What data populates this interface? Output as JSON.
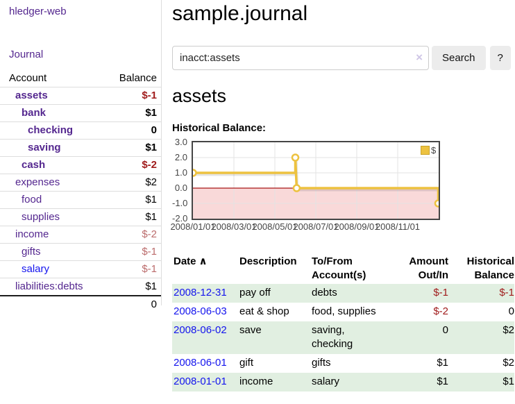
{
  "app": {
    "brand": "hledger-web"
  },
  "nav": {
    "journal": "Journal"
  },
  "sidebar": {
    "header": {
      "account": "Account",
      "balance": "Balance"
    },
    "accounts": [
      {
        "name": "assets",
        "indent": 1,
        "bold": true,
        "link_color": "purple",
        "balance": "$-1",
        "balance_class": "neg"
      },
      {
        "name": "bank",
        "indent": 2,
        "bold": true,
        "link_color": "purple",
        "balance": "$1",
        "balance_class": "plain"
      },
      {
        "name": "checking",
        "indent": 3,
        "bold": true,
        "link_color": "purple",
        "balance": "0",
        "balance_class": "plain"
      },
      {
        "name": "saving",
        "indent": 3,
        "bold": true,
        "link_color": "purple",
        "balance": "$1",
        "balance_class": "plain"
      },
      {
        "name": "cash",
        "indent": 2,
        "bold": true,
        "link_color": "purple",
        "balance": "$-2",
        "balance_class": "neg"
      },
      {
        "name": "expenses",
        "indent": 1,
        "bold": false,
        "link_color": "purple",
        "balance": "$2",
        "balance_class": "plain"
      },
      {
        "name": "food",
        "indent": 2,
        "bold": false,
        "link_color": "purple",
        "balance": "$1",
        "balance_class": "plain"
      },
      {
        "name": "supplies",
        "indent": 2,
        "bold": false,
        "link_color": "purple",
        "balance": "$1",
        "balance_class": "plain"
      },
      {
        "name": "income",
        "indent": 1,
        "bold": false,
        "link_color": "purple",
        "balance": "$-2",
        "balance_class": "negsoft"
      },
      {
        "name": "gifts",
        "indent": 2,
        "bold": false,
        "link_color": "purple",
        "balance": "$-1",
        "balance_class": "negsoft"
      },
      {
        "name": "salary",
        "indent": 2,
        "bold": false,
        "link_color": "blue",
        "balance": "$-1",
        "balance_class": "negsoft"
      },
      {
        "name": "liabilities:debts",
        "indent": 1,
        "bold": false,
        "link_color": "purple",
        "balance": "$1",
        "balance_class": "plain"
      }
    ],
    "total": "0"
  },
  "main": {
    "title": "sample.journal",
    "search": {
      "query": "inacct:assets",
      "clear_icon": "×",
      "button": "Search",
      "help": "?"
    },
    "heading": "assets",
    "chart_label": "Historical Balance:"
  },
  "chart_data": {
    "type": "line",
    "title": "Historical Balance",
    "ylim": [
      -2.0,
      3.0
    ],
    "yticks": [
      3.0,
      2.0,
      1.0,
      0.0,
      -1.0,
      -2.0
    ],
    "xticks": [
      "2008/01/01",
      "2008/03/01",
      "2008/05/01",
      "2008/07/01",
      "2008/09/01",
      "2008/11/01"
    ],
    "xtick_months": [
      0,
      2,
      4,
      6,
      8,
      10
    ],
    "xlim_months": [
      0,
      12
    ],
    "grid": true,
    "negative_region": {
      "from": 0,
      "to": -2,
      "color": "#f9d9d9"
    },
    "zero_line_color": "#a81616",
    "grid_color": "#e3e3e3",
    "border_color": "#454545",
    "legend": {
      "position": "top-right"
    },
    "series": [
      {
        "name": "$",
        "color": "#edc240",
        "points": [
          [
            "2008-01-01",
            1
          ],
          [
            "2008-06-01",
            1
          ],
          [
            "2008-06-01",
            2
          ],
          [
            "2008-06-03",
            0
          ],
          [
            "2008-12-31",
            0
          ],
          [
            "2008-12-31",
            -1
          ]
        ],
        "markers": [
          [
            "2008-01-01",
            1
          ],
          [
            "2008-06-01",
            2
          ],
          [
            "2008-06-03",
            0
          ],
          [
            "2008-12-31",
            -1
          ]
        ]
      }
    ]
  },
  "transactions": {
    "columns": [
      "Date",
      "Description",
      "To/From Account(s)",
      "Amount Out/In",
      "Historical Balance"
    ],
    "sort_icon": "∧",
    "rows": [
      {
        "date": "2008-12-31",
        "description": "pay off",
        "accounts": "debts",
        "amount": "$-1",
        "amount_class": "neg",
        "balance": "$-1",
        "balance_class": "neg",
        "shaded": true
      },
      {
        "date": "2008-06-03",
        "description": "eat & shop",
        "accounts": "food, supplies",
        "amount": "$-2",
        "amount_class": "neg",
        "balance": "0",
        "balance_class": "plain",
        "shaded": false
      },
      {
        "date": "2008-06-02",
        "description": "save",
        "accounts": "saving, checking",
        "amount": "0",
        "amount_class": "plain",
        "balance": "$2",
        "balance_class": "plain",
        "shaded": true
      },
      {
        "date": "2008-06-01",
        "description": "gift",
        "accounts": "gifts",
        "amount": "$1",
        "amount_class": "plain",
        "balance": "$2",
        "balance_class": "plain",
        "shaded": false
      },
      {
        "date": "2008-01-01",
        "description": "income",
        "accounts": "salary",
        "amount": "$1",
        "amount_class": "plain",
        "balance": "$1",
        "balance_class": "plain",
        "shaded": true
      }
    ]
  },
  "colors": {
    "link_purple": "#54278f",
    "link_blue": "#1414ee",
    "negative_strong": "#a01c1c",
    "negative_soft": "#bb6b6b",
    "row_shade_green": "#e1efe1",
    "chart_line_gold": "#edc240"
  }
}
